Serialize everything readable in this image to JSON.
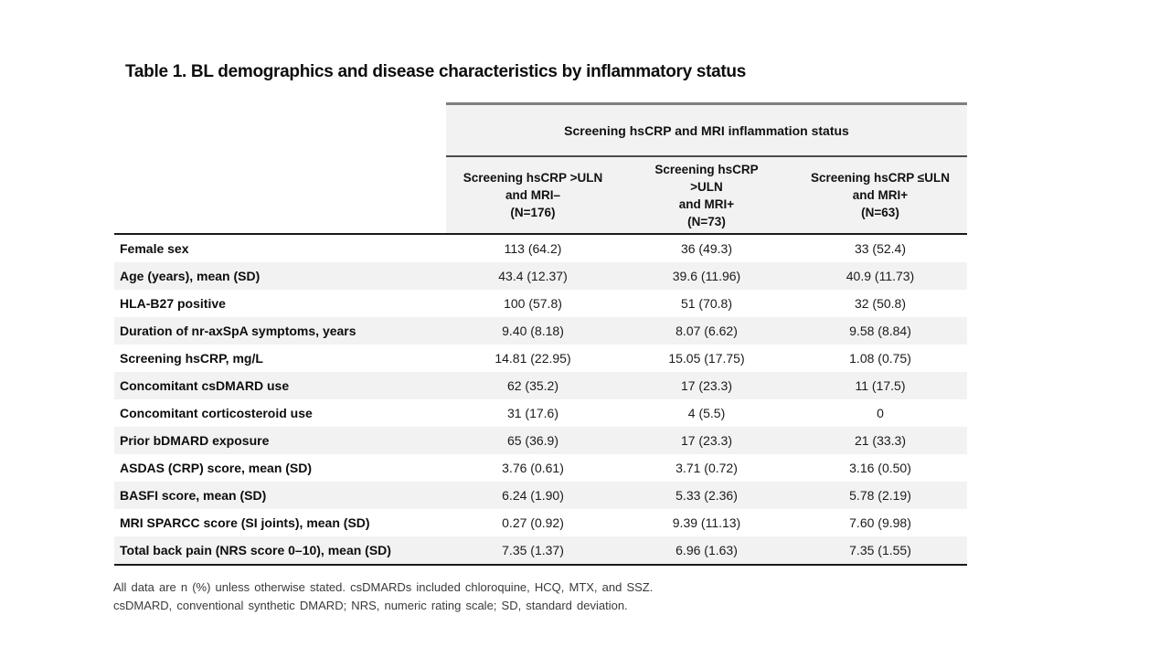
{
  "title": "Table 1. BL demographics and disease characteristics by inflammatory status",
  "table": {
    "group_header": "Screening hsCRP and MRI inflammation status",
    "columns": [
      {
        "label": "Screening hsCRP >ULN\nand MRI–\n(N=176)"
      },
      {
        "label": "Screening hsCRP\n>ULN\nand MRI+\n(N=73)"
      },
      {
        "label": "Screening hsCRP ≤ULN\nand MRI+\n(N=63)"
      }
    ],
    "rows": [
      {
        "label": "Female sex",
        "values": [
          "113 (64.2)",
          "36 (49.3)",
          "33 (52.4)"
        ]
      },
      {
        "label": "Age (years), mean (SD)",
        "values": [
          "43.4 (12.37)",
          "39.6 (11.96)",
          "40.9 (11.73)"
        ]
      },
      {
        "label": "HLA-B27 positive",
        "values": [
          "100 (57.8)",
          "51 (70.8)",
          "32 (50.8)"
        ]
      },
      {
        "label": "Duration of nr-axSpA symptoms, years",
        "values": [
          "9.40 (8.18)",
          "8.07 (6.62)",
          "9.58 (8.84)"
        ]
      },
      {
        "label": "Screening hsCRP, mg/L",
        "values": [
          "14.81 (22.95)",
          "15.05 (17.75)",
          "1.08 (0.75)"
        ]
      },
      {
        "label": "Concomitant csDMARD use",
        "values": [
          "62 (35.2)",
          "17 (23.3)",
          "11 (17.5)"
        ]
      },
      {
        "label": "Concomitant corticosteroid use",
        "values": [
          "31 (17.6)",
          "4 (5.5)",
          "0"
        ]
      },
      {
        "label": "Prior bDMARD exposure",
        "values": [
          "65 (36.9)",
          "17 (23.3)",
          "21 (33.3)"
        ]
      },
      {
        "label": "ASDAS (CRP) score, mean (SD)",
        "values": [
          "3.76 (0.61)",
          "3.71 (0.72)",
          "3.16 (0.50)"
        ]
      },
      {
        "label": "BASFI score, mean (SD)",
        "values": [
          "6.24 (1.90)",
          "5.33 (2.36)",
          "5.78 (2.19)"
        ]
      },
      {
        "label": "MRI SPARCC score (SI joints), mean (SD)",
        "values": [
          "0.27 (0.92)",
          "9.39 (11.13)",
          "7.60 (9.98)"
        ]
      },
      {
        "label": "Total back pain (NRS score 0–10), mean (SD)",
        "values": [
          "7.35 (1.37)",
          "6.96 (1.63)",
          "7.35 (1.55)"
        ]
      }
    ]
  },
  "footnotes": [
    "All data are n (%) unless otherwise stated. csDMARDs included chloroquine, HCQ, MTX, and SSZ.",
    "csDMARD, conventional synthetic DMARD; NRS, numeric rating scale; SD, standard deviation."
  ],
  "colors": {
    "stripe_gray": "#f2f2f2",
    "header_top_border": "#7f7f7f",
    "header_sub_border": "#4a4a4a",
    "rule_black": "#1a1a1a",
    "footnote_text": "#3a3a3a"
  }
}
